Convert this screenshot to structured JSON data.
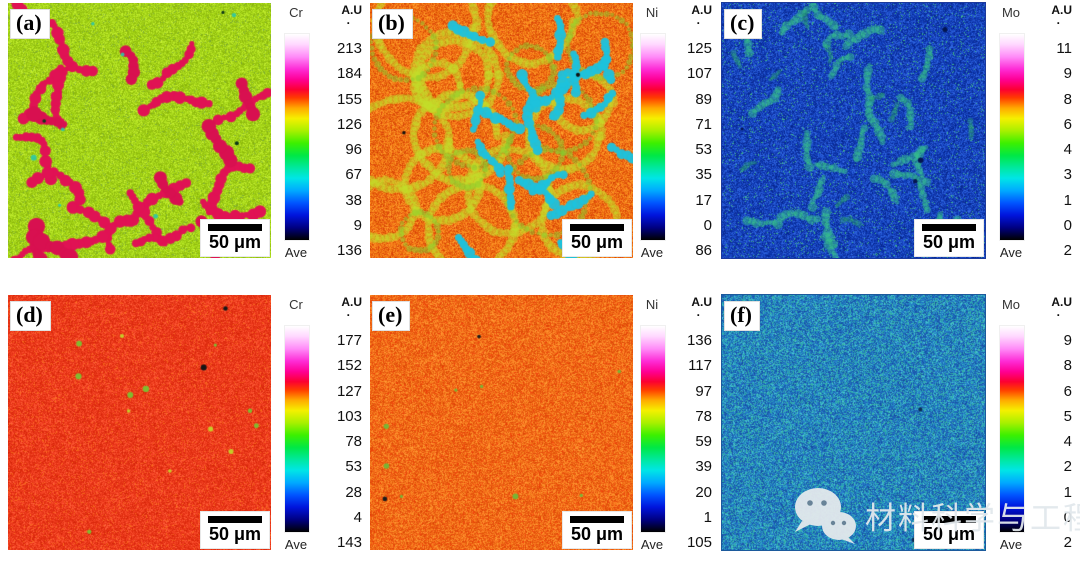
{
  "figure": {
    "description": "EDS elemental mapping figure, six panels in two rows",
    "units_label": "A.U",
    "units_dot": ".",
    "colorbar_gradient": [
      "#ffffff 0%",
      "#ffd8ff 5%",
      "#ff8cf8 11%",
      "#fe2cd6 17%",
      "#ff0096 22%",
      "#fc0032 27%",
      "#ff3c00 31%",
      "#ffaa00 36%",
      "#f5f000 41%",
      "#a8f000 47%",
      "#3cf000 53%",
      "#00e846 59%",
      "#00e8a0 65%",
      "#00e6e6 70%",
      "#00aaff 76%",
      "#0055ff 82%",
      "#0014dc 88%",
      "#000082 94%",
      "#000000 100%"
    ],
    "watermark": {
      "icon": "wechat-icon",
      "text": "材料科学与工程"
    },
    "panels": [
      {
        "id": "a",
        "label": "(a)",
        "element": "Cr",
        "units": "A.U",
        "ticks": [
          "213",
          "184",
          "155",
          "126",
          "96",
          "67",
          "38",
          "9"
        ],
        "ave_label": "Ave",
        "ave_value": "136",
        "scale_label": "50 μm",
        "map": {
          "palette": [
            "#a4d416",
            "#97c513",
            "#b2e222",
            "#8fba10",
            "#c3ec2e",
            "#7fae3a"
          ],
          "weights": [
            0.3,
            0.22,
            0.2,
            0.14,
            0.1,
            0.04
          ],
          "features": [
            {
              "type": "streak",
              "count": 18,
              "color": "#e01254",
              "rmin": 2.5,
              "rmax": 6.5,
              "steps": 13,
              "alpha": 1
            },
            {
              "type": "streak",
              "count": 8,
              "color": "#d81050",
              "rmin": 4,
              "rmax": 9,
              "steps": 6,
              "alpha": 1
            },
            {
              "type": "speck",
              "count": 7,
              "color": "#2cc8a8",
              "smin": 1.5,
              "smax": 3,
              "alpha": 0.9
            },
            {
              "type": "speck",
              "count": 3,
              "color": "#0c3818",
              "smin": 1.5,
              "smax": 2.5,
              "alpha": 1
            }
          ]
        }
      },
      {
        "id": "b",
        "label": "(b)",
        "element": "Ni",
        "units": "A.U",
        "ticks": [
          "125",
          "107",
          "89",
          "71",
          "53",
          "35",
          "17",
          "0"
        ],
        "ave_label": "Ave",
        "ave_value": "86",
        "scale_label": "50 μm",
        "map": {
          "palette": [
            "#f07414",
            "#e8600e",
            "#f8881c",
            "#ff9c2a",
            "#e04c0a",
            "#d8420a"
          ],
          "weights": [
            0.26,
            0.22,
            0.2,
            0.12,
            0.12,
            0.08
          ],
          "features": [
            {
              "type": "ring",
              "count": 14,
              "color": "#c2de2a",
              "rmin": 22,
              "rmax": 50,
              "width": 7,
              "alpha": 0.55
            },
            {
              "type": "ring",
              "count": 9,
              "color": "#86cc2e",
              "rmin": 18,
              "rmax": 42,
              "width": 4,
              "alpha": 0.5
            },
            {
              "type": "streak",
              "count": 20,
              "color": "#1ec2dc",
              "rmin": 2.5,
              "rmax": 6,
              "steps": 9,
              "alpha": 0.95
            },
            {
              "type": "speck",
              "count": 2,
              "color": "#101010",
              "smin": 1.5,
              "smax": 2.5,
              "alpha": 1
            }
          ]
        }
      },
      {
        "id": "c",
        "label": "(c)",
        "element": "Mo",
        "units": "A.U",
        "ticks": [
          "11",
          "9",
          "8",
          "6",
          "4",
          "3",
          "1",
          "0"
        ],
        "ave_label": "Ave",
        "ave_value": "2",
        "scale_label": "50 μm",
        "map": {
          "border": "#1c3a9c",
          "palette": [
            "#1543be",
            "#0d33a6",
            "#2456d2",
            "#0a2a92",
            "#2e66e0",
            "#3fb489"
          ],
          "weights": [
            0.28,
            0.24,
            0.2,
            0.14,
            0.1,
            0.04
          ],
          "features": [
            {
              "type": "streak",
              "count": 26,
              "color": "#35c489",
              "rmin": 2,
              "rmax": 5,
              "steps": 9,
              "alpha": 0.5
            },
            {
              "type": "streak",
              "count": 10,
              "color": "#2aa86e",
              "rmin": 1.5,
              "rmax": 3.5,
              "steps": 6,
              "alpha": 0.4
            },
            {
              "type": "speck",
              "count": 4,
              "color": "#041650",
              "smin": 1.5,
              "smax": 3,
              "alpha": 1
            }
          ]
        }
      },
      {
        "id": "d",
        "label": "(d)",
        "element": "Cr",
        "units": "A.U",
        "ticks": [
          "177",
          "152",
          "127",
          "103",
          "78",
          "53",
          "28",
          "4"
        ],
        "ave_label": "Ave",
        "ave_value": "143",
        "scale_label": "50 μm",
        "map": {
          "palette": [
            "#ec3a1c",
            "#e32f12",
            "#f64a28",
            "#da2a0e",
            "#ff5c36",
            "#f86a1e"
          ],
          "weights": [
            0.28,
            0.24,
            0.2,
            0.14,
            0.08,
            0.06
          ],
          "features": [
            {
              "type": "speck",
              "count": 9,
              "color": "#7ac232",
              "smin": 1.5,
              "smax": 3.5,
              "alpha": 0.95
            },
            {
              "type": "speck",
              "count": 6,
              "color": "#c3d42a",
              "smin": 1.5,
              "smax": 3,
              "alpha": 0.95
            },
            {
              "type": "speck",
              "count": 2,
              "color": "#161616",
              "smin": 2,
              "smax": 3,
              "alpha": 1
            }
          ]
        }
      },
      {
        "id": "e",
        "label": "(e)",
        "element": "Ni",
        "units": "A.U",
        "ticks": [
          "136",
          "117",
          "97",
          "78",
          "59",
          "39",
          "20",
          "1"
        ],
        "ave_label": "Ave",
        "ave_value": "105",
        "scale_label": "50 μm",
        "map": {
          "palette": [
            "#f26e18",
            "#ea5a10",
            "#fa8424",
            "#e24c0c",
            "#ff9830",
            "#f0410a"
          ],
          "weights": [
            0.26,
            0.24,
            0.2,
            0.14,
            0.1,
            0.06
          ],
          "features": [
            {
              "type": "speck",
              "count": 8,
              "color": "#6cbe3a",
              "smin": 1.5,
              "smax": 3,
              "alpha": 0.9
            },
            {
              "type": "speck",
              "count": 3,
              "color": "#1c1c1c",
              "smin": 1.5,
              "smax": 3,
              "alpha": 1
            }
          ]
        }
      },
      {
        "id": "f",
        "label": "(f)",
        "element": "Mo",
        "units": "A.U",
        "ticks": [
          "9",
          "8",
          "6",
          "5",
          "4",
          "2",
          "1",
          "0"
        ],
        "ave_label": "Ave",
        "ave_value": "2",
        "scale_label": "50 μm",
        "map": {
          "border": "#1c5a9c",
          "palette": [
            "#2377c6",
            "#2b9fc0",
            "#1c63b2",
            "#37b2a4",
            "#1a50a8",
            "#46c0d2"
          ],
          "weights": [
            0.24,
            0.22,
            0.2,
            0.14,
            0.12,
            0.08
          ],
          "features": [
            {
              "type": "speck",
              "count": 2,
              "color": "#0c2c54",
              "smin": 1.5,
              "smax": 2.5,
              "alpha": 1
            }
          ]
        }
      }
    ]
  }
}
